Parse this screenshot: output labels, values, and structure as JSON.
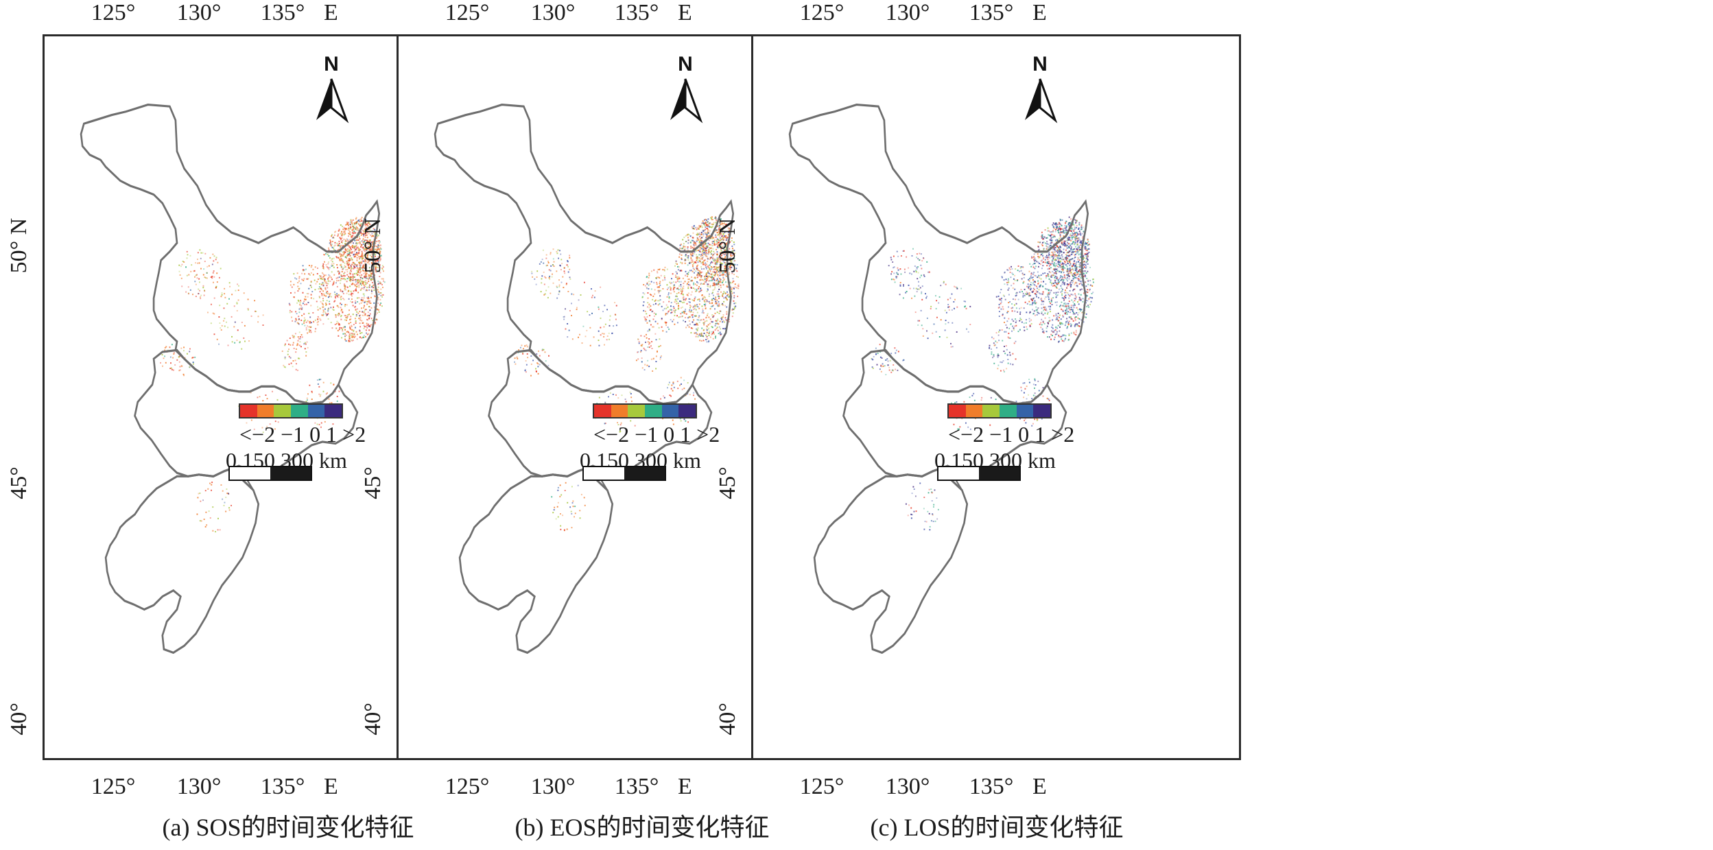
{
  "panels": [
    {
      "id": "a",
      "caption": "(a) SOS的时间变化特征",
      "lon_ticks": [
        "125°",
        "130°",
        "135°"
      ],
      "lon_unit": "E",
      "lat_ticks": [
        "40°",
        "45°",
        "50°  N"
      ],
      "legend_labels": "<−2 −1 0   1  >2",
      "scale_labels": "0    150    300 km",
      "north_label": "N",
      "dominant_colors": [
        "#e8412e",
        "#f07a2a",
        "#a6c43c",
        "#f07a2a",
        "#e8412e"
      ]
    },
    {
      "id": "b",
      "caption": "(b) EOS的时间变化特征",
      "lon_ticks": [
        "125°",
        "130°",
        "135°"
      ],
      "lon_unit": "E",
      "lat_ticks": [
        "40°",
        "45°",
        "50°  N"
      ],
      "legend_labels": "<−2 −1 0   1  >2",
      "scale_labels": "0    150    300 km",
      "north_label": "N",
      "dominant_colors": [
        "#f07a2a",
        "#e8412e",
        "#3a4ea8",
        "#a6c43c",
        "#f07a2a"
      ]
    },
    {
      "id": "c",
      "caption": "(c) LOS的时间变化特征",
      "lon_ticks": [
        "125°",
        "130°",
        "135°"
      ],
      "lon_unit": "E",
      "lat_ticks": [
        "40°",
        "45°",
        "50°  N"
      ],
      "legend_labels": "<−2 −1 0   1  >2",
      "scale_labels": "0    150    300 km",
      "north_label": "N",
      "dominant_colors": [
        "#3a4ea8",
        "#3a4ea8",
        "#2ea882",
        "#e8412e",
        "#4a2e82"
      ]
    }
  ],
  "legend_colors": [
    "#e5332a",
    "#f07d2a",
    "#a7c93c",
    "#2fae86",
    "#3463a8",
    "#3b2a7e"
  ],
  "boundary_color": "#6e6e6e"
}
